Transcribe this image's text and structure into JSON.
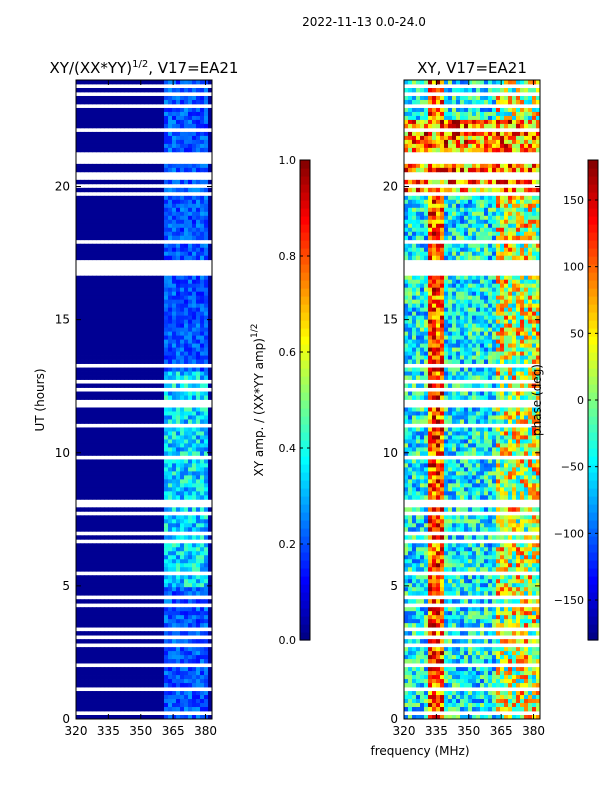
{
  "figure_title": "2022-11-13 0.0-24.0",
  "colors": {
    "jet": [
      "#00007f",
      "#0000ff",
      "#007fff",
      "#00ffff",
      "#7fff7f",
      "#ffff00",
      "#ff7f00",
      "#ff0000",
      "#7f0000"
    ]
  },
  "chart_data": [
    {
      "type": "heatmap",
      "title": "XY/(XX*YY)",
      "title_exponent": "1/2",
      "title_suffix": ", V17=EA21",
      "xlabel": "",
      "ylabel": "UT (hours)",
      "xlim": [
        320,
        383
      ],
      "ylim": [
        0,
        24
      ],
      "xticks": [
        320,
        335,
        350,
        365,
        380
      ],
      "yticks": [
        0,
        5,
        10,
        15,
        20
      ],
      "colorbar": {
        "label": "XY amp. / (XX*YY amp)",
        "label_exponent": "1/2",
        "range": [
          0.0,
          1.0
        ],
        "ticks": [
          "0.0",
          "0.2",
          "0.4",
          "0.6",
          "0.8",
          "1.0"
        ]
      }
    },
    {
      "type": "heatmap",
      "title": "XY, V17=EA21",
      "xlabel": "frequency (MHz)",
      "ylabel": "",
      "xlim": [
        320,
        383
      ],
      "ylim": [
        0,
        24
      ],
      "xticks": [
        320,
        335,
        350,
        365,
        380
      ],
      "yticks": [
        0,
        5,
        10,
        15,
        20
      ],
      "colorbar": {
        "label": "phase (deg)",
        "range": [
          -180,
          180
        ],
        "ticks": [
          "−150",
          "−100",
          "−50",
          "0",
          "50",
          "100",
          "150"
        ]
      }
    }
  ]
}
